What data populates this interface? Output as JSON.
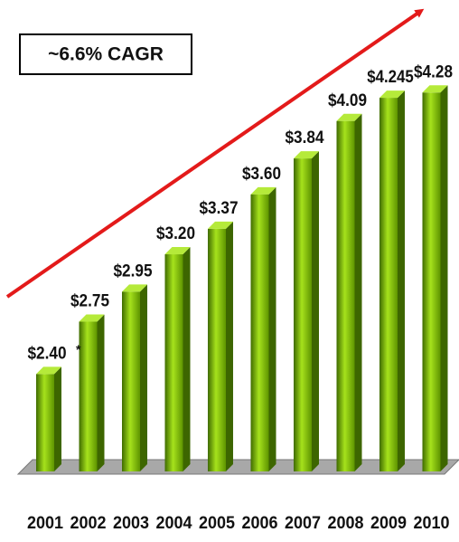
{
  "chart_data": {
    "type": "bar3d",
    "annotation": "~6.6% CAGR",
    "footnote_mark": "*",
    "categories": [
      "2001",
      "2002",
      "2003",
      "2004",
      "2005",
      "2006",
      "2007",
      "2008",
      "2009",
      "2010"
    ],
    "values": [
      2.4,
      2.75,
      2.95,
      3.2,
      3.37,
      3.6,
      3.84,
      4.09,
      4.245,
      4.28
    ],
    "value_labels": [
      "$2.40",
      "$2.75",
      "$2.95",
      "$3.20",
      "$3.37",
      "$3.60",
      "$3.84",
      "$4.09",
      "$4.245",
      "$4.28"
    ],
    "color": "#7fbf00",
    "ylim": [
      1.75,
      4.3
    ]
  }
}
